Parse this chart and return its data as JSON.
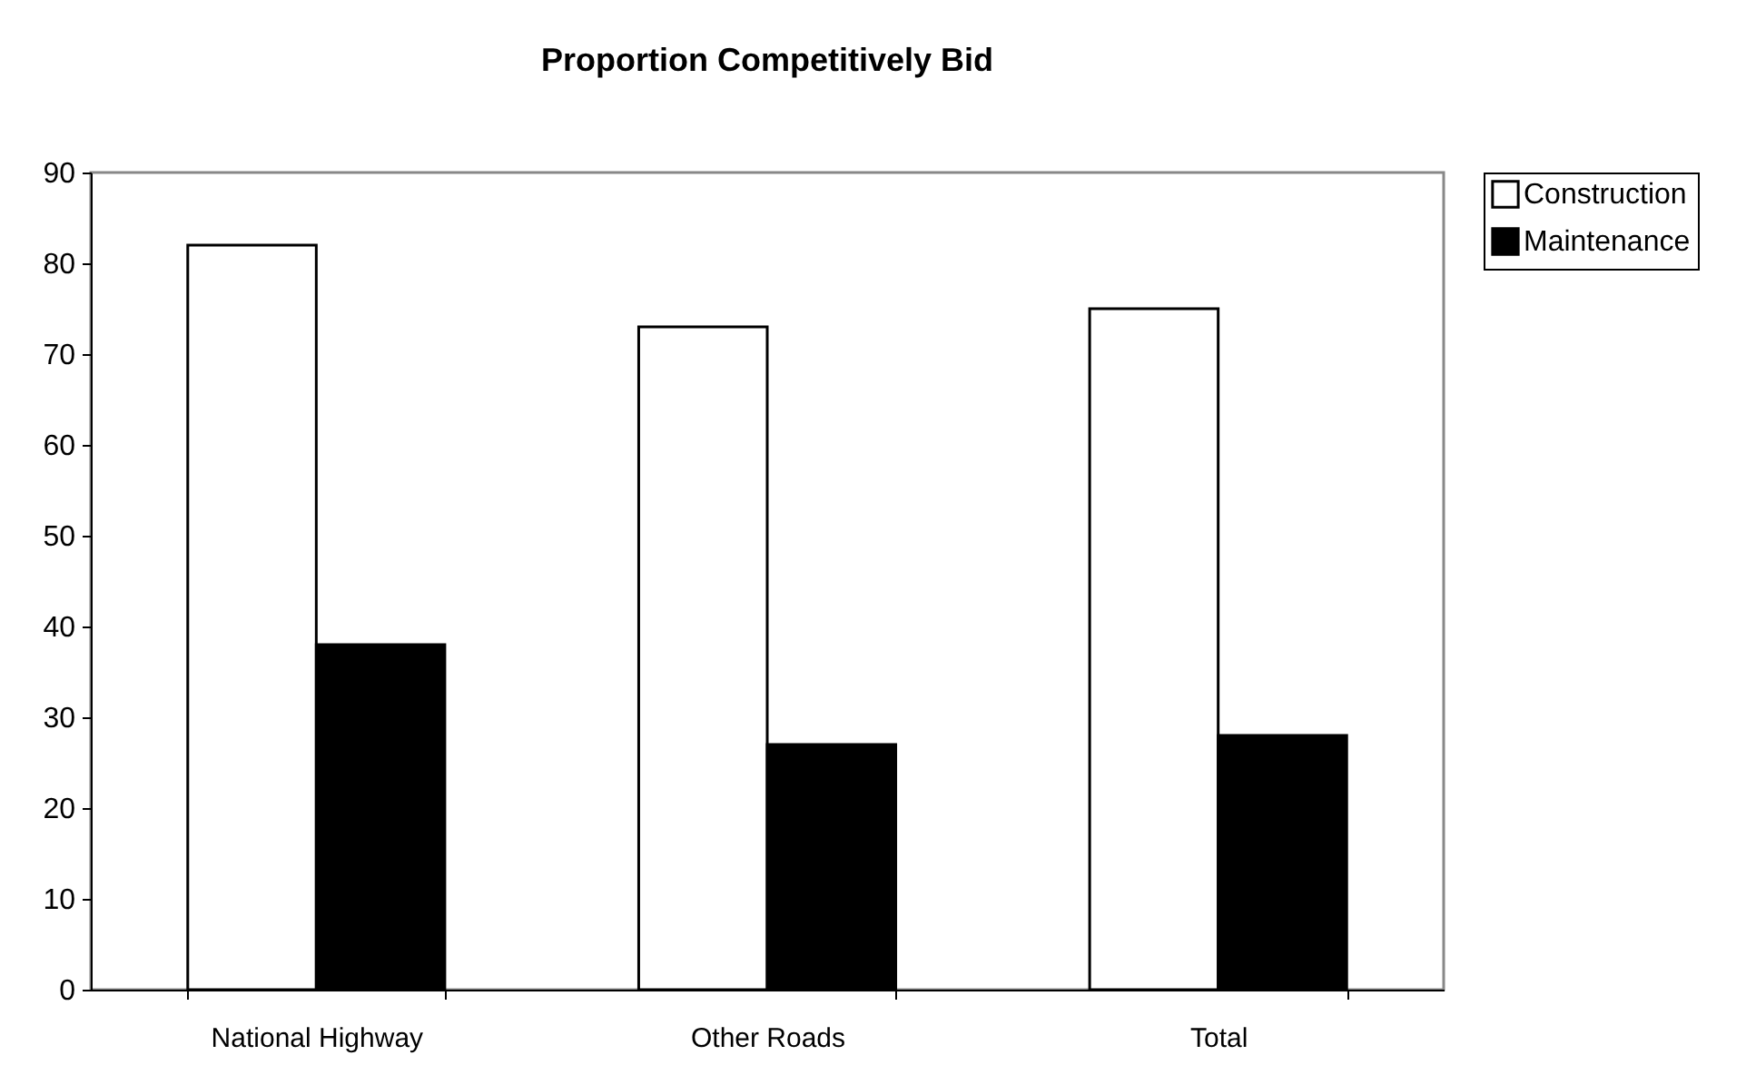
{
  "chart_data": {
    "type": "bar",
    "title": "Proportion Competitively Bid",
    "categories": [
      "National Highway",
      "Other Roads",
      "Total"
    ],
    "series": [
      {
        "name": "Construction",
        "color": "#ffffff",
        "values": [
          82,
          73,
          75
        ]
      },
      {
        "name": "Maintenance",
        "color": "#000000",
        "values": [
          38,
          27,
          28
        ]
      }
    ],
    "ylim": [
      0,
      90
    ],
    "yticks": [
      0,
      10,
      20,
      30,
      40,
      50,
      60,
      70,
      80,
      90
    ],
    "grid": false,
    "legend": "right"
  }
}
